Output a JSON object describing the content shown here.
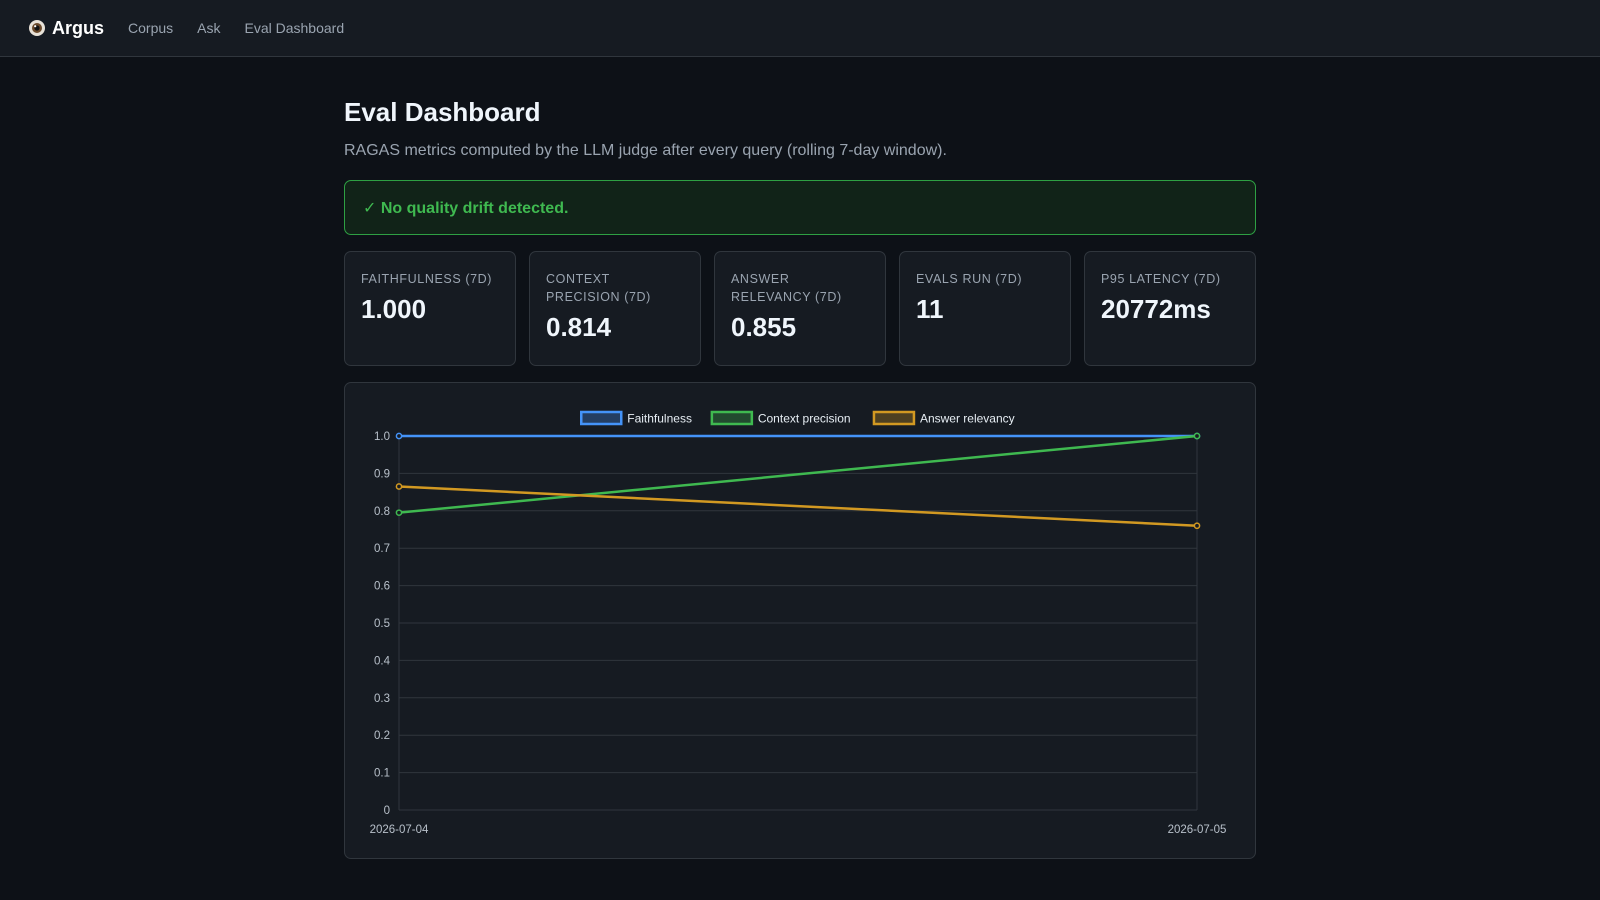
{
  "nav": {
    "brand": "Argus",
    "links": [
      "Corpus",
      "Ask",
      "Eval Dashboard"
    ]
  },
  "page": {
    "title": "Eval Dashboard",
    "subtitle": "RAGAS metrics computed by the LLM judge after every query (rolling 7-day window)."
  },
  "alert": {
    "icon": "check-icon",
    "text": "✓ No quality drift detected.",
    "color": "#3fb950"
  },
  "stats": [
    {
      "label": "FAITHFULNESS (7D)",
      "value": "1.000"
    },
    {
      "label": "CONTEXT PRECISION (7D)",
      "value": "0.814"
    },
    {
      "label": "ANSWER RELEVANCY (7D)",
      "value": "0.855"
    },
    {
      "label": "EVALS RUN (7D)",
      "value": "11"
    },
    {
      "label": "P95 LATENCY (7D)",
      "value": "20772ms"
    }
  ],
  "chart_data": {
    "type": "line",
    "x": [
      "2026-07-04",
      "2026-07-05"
    ],
    "series": [
      {
        "name": "Faithfulness",
        "values": [
          1.0,
          1.0
        ],
        "color": "#4493f8"
      },
      {
        "name": "Context precision",
        "values": [
          0.795,
          1.0
        ],
        "color": "#3fb950"
      },
      {
        "name": "Answer relevancy",
        "values": [
          0.865,
          0.76
        ],
        "color": "#d29922"
      }
    ],
    "ylim": [
      0,
      1.0
    ],
    "yticks": [
      "0",
      "0.1",
      "0.2",
      "0.3",
      "0.4",
      "0.5",
      "0.6",
      "0.7",
      "0.8",
      "0.9",
      "1.0"
    ],
    "grid": true,
    "legend": "top-center"
  }
}
